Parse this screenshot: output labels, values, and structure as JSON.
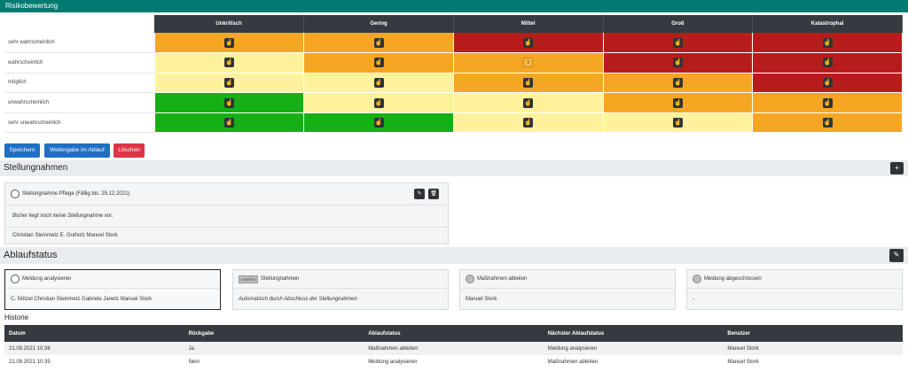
{
  "header": {
    "title": "Risikobewertung"
  },
  "risk_matrix": {
    "columns": [
      "Unkritisch",
      "Gering",
      "Mittel",
      "Groß",
      "Katastrophal"
    ],
    "rows": [
      {
        "label": "sehr wahrscheinlich",
        "cells": [
          {
            "color": "#f5a623"
          },
          {
            "color": "#f5a623"
          },
          {
            "color": "#b71c1c"
          },
          {
            "color": "#b71c1c"
          },
          {
            "color": "#b71c1c"
          }
        ]
      },
      {
        "label": "wahrscheinlich",
        "cells": [
          {
            "color": "#fff29c"
          },
          {
            "color": "#f5a623"
          },
          {
            "color": "#f5a623",
            "selected": true,
            "mark": "3"
          },
          {
            "color": "#b71c1c"
          },
          {
            "color": "#b71c1c"
          }
        ]
      },
      {
        "label": "möglich",
        "cells": [
          {
            "color": "#fff29c"
          },
          {
            "color": "#fff29c"
          },
          {
            "color": "#f5a623"
          },
          {
            "color": "#f5a623"
          },
          {
            "color": "#b71c1c"
          }
        ]
      },
      {
        "label": "unwahrscheinlich",
        "cells": [
          {
            "color": "#15b015"
          },
          {
            "color": "#fff29c"
          },
          {
            "color": "#fff29c"
          },
          {
            "color": "#f5a623"
          },
          {
            "color": "#f5a623"
          }
        ]
      },
      {
        "label": "sehr unwahrscheinlich",
        "cells": [
          {
            "color": "#15b015"
          },
          {
            "color": "#15b015"
          },
          {
            "color": "#fff29c"
          },
          {
            "color": "#fff29c"
          },
          {
            "color": "#f5a623"
          }
        ]
      }
    ],
    "cell_icon": "hand-pointer-icon"
  },
  "actions": {
    "save": "Speichern",
    "forward": "Weitergabe im Ablauf",
    "delete": "Löschen"
  },
  "stellungnahmen": {
    "title": "Stellungnahmen",
    "add_icon": "plus-icon",
    "card": {
      "title": "Stellungnahme Pflege (Fällig bis: 25.12.2021)",
      "body": "Bisher liegt noch keine Stellungnahme vor.",
      "people": "Christian Steinmetz  E. Gutholz  Manuel Stork",
      "edit_icon": "edit-icon",
      "delete_icon": "trash-icon"
    }
  },
  "ablaufstatus": {
    "title": "Ablaufstatus",
    "edit_icon": "edit-icon",
    "steps": [
      {
        "title": "Meldung analysieren",
        "body": "C. Nötzel  Christian Steinmetz  Gabriele Janetz  Manuel Stork",
        "active": true
      },
      {
        "title": "Stellungnahmen",
        "tag": "STARTED",
        "body": "Automatisch durch Abschluss der Stellungnahmen",
        "italic": true
      },
      {
        "title": "Maßnahmen ableiten",
        "body": "Manuel Stork"
      },
      {
        "title": "Meldung abgeschlossen",
        "body": "-"
      }
    ]
  },
  "historie": {
    "title": "Historie",
    "columns": [
      "Datum",
      "Rückgabe",
      "Ablaufstatus",
      "Nächster Ablaufstatus",
      "Benutzer"
    ],
    "rows": [
      [
        "21.09.2021 10:36",
        "Ja",
        "Maßnahmen ableiten",
        "Meldung analysieren",
        "Manuel Stork"
      ],
      [
        "21.09.2021 10:35",
        "Nein",
        "Meldung analysieren",
        "Maßnahmen ableiten",
        "Manuel Stork"
      ]
    ]
  }
}
